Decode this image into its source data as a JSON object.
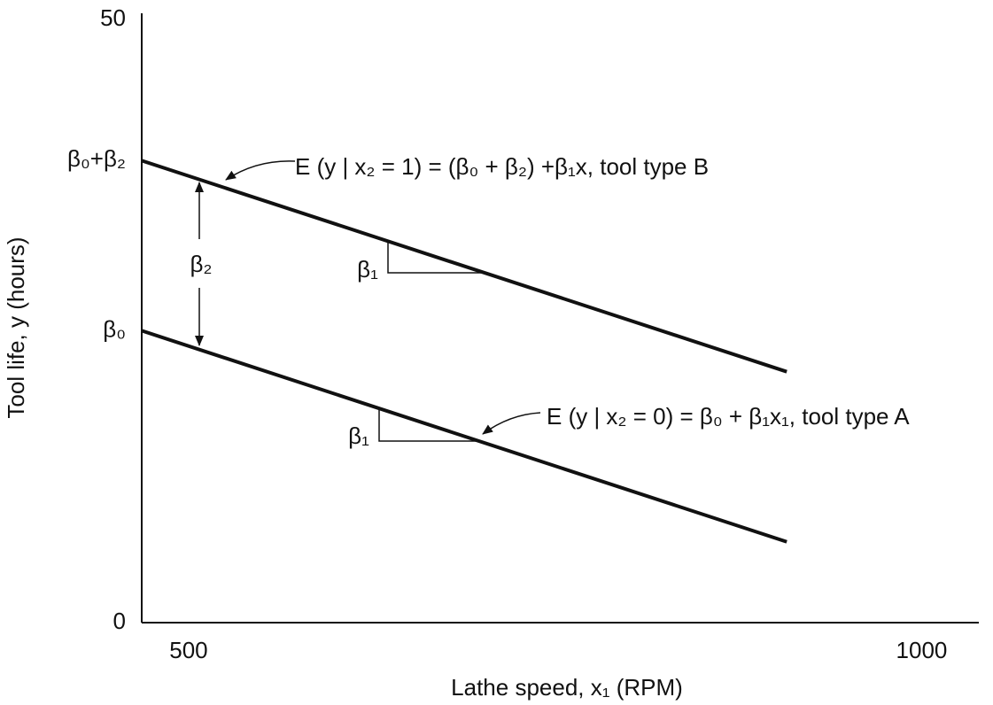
{
  "chart_data": {
    "type": "line",
    "x_label": "Lathe speed, x₁ (RPM)",
    "y_label": "Tool life, y (hours)",
    "xlim": [
      468,
      1039
    ],
    "xticks": [
      500,
      1000
    ],
    "ylim": [
      0,
      50
    ],
    "yticks": [
      0,
      {
        "value": 24.2,
        "label": "β₀"
      },
      {
        "value": 38.3,
        "label": "β₀+β₂"
      },
      50
    ],
    "x": [
      468,
      908
    ],
    "series": [
      {
        "color": "#111111",
        "values": [
          38.3,
          20.8
        ]
      },
      {
        "color": "#111111",
        "values": [
          24.2,
          6.7
        ]
      }
    ],
    "annotations": [
      {
        "text": "E (y | x₂ = 1) = (β₀ + β₂) +β₁x, tool type B"
      },
      {
        "text": "E (y | x₂ = 0) = β₀ + β₁x₁, tool type A"
      },
      {
        "text": "β₁"
      },
      {
        "text": "β₁"
      },
      {
        "text": "β₂"
      }
    ]
  }
}
